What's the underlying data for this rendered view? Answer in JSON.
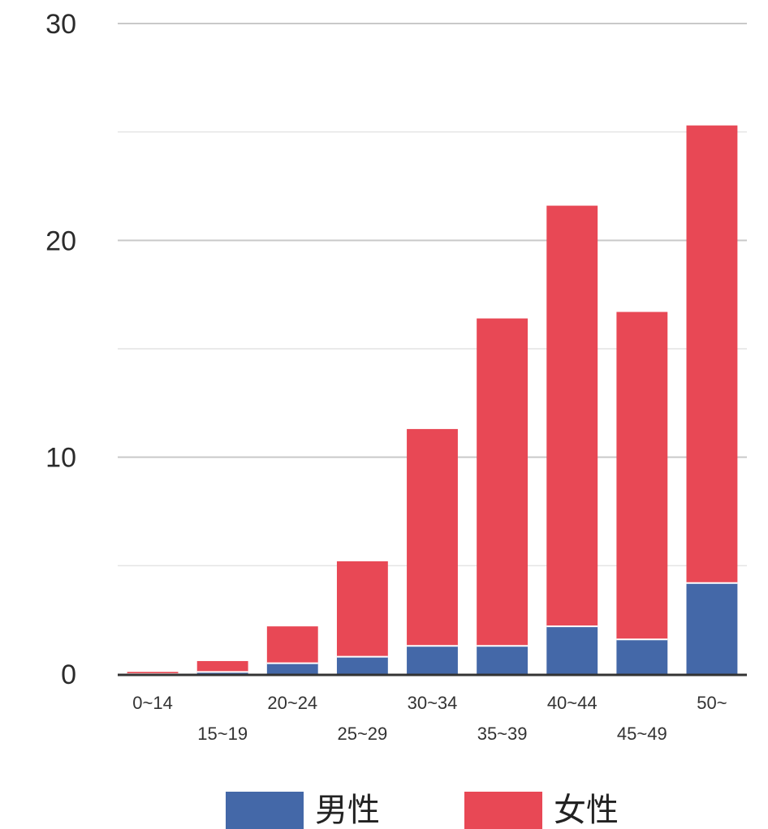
{
  "chart_data": {
    "type": "bar",
    "stacked": true,
    "categories": [
      "0~14",
      "15~19",
      "20~24",
      "25~29",
      "30~34",
      "35~39",
      "40~44",
      "45~49",
      "50~"
    ],
    "series": [
      {
        "name": "男性",
        "color": "#4468a8",
        "values": [
          0.0,
          0.1,
          0.5,
          0.8,
          1.3,
          1.3,
          2.2,
          1.6,
          4.2
        ]
      },
      {
        "name": "女性",
        "color": "#e84855",
        "values": [
          0.1,
          0.5,
          1.7,
          4.4,
          10.0,
          15.1,
          19.4,
          15.1,
          21.1
        ]
      }
    ],
    "ylim": [
      0,
      30
    ],
    "yticks": [
      "0",
      "10",
      "20",
      "30"
    ],
    "grid": true,
    "legend": "bottom"
  }
}
